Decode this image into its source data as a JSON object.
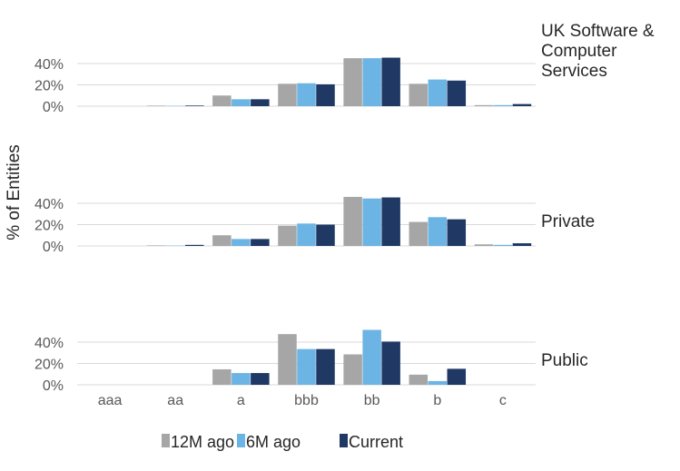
{
  "chart_data": {
    "type": "bar",
    "ylabel": "% of Entities",
    "categories": [
      "aaa",
      "aa",
      "a",
      "bbb",
      "bb",
      "b",
      "c"
    ],
    "yticks": [
      "0%",
      "20%",
      "40%"
    ],
    "ylim": [
      0,
      48
    ],
    "grid": true,
    "legend_position": "bottom",
    "series": [
      {
        "name": "12M ago",
        "color": "#a6a6a6"
      },
      {
        "name": "6M ago",
        "color": "#6cb4e4"
      },
      {
        "name": "Current",
        "color": "#1f3864"
      }
    ],
    "panels": [
      {
        "label_lines": [
          "UK Software &",
          "Computer",
          "Services"
        ],
        "values": [
          [
            0,
            0.5,
            10,
            21,
            45,
            21,
            1
          ],
          [
            0,
            0.3,
            6.5,
            21.5,
            45,
            25,
            1
          ],
          [
            0,
            0.6,
            6.5,
            20.5,
            45.5,
            24,
            2
          ]
        ]
      },
      {
        "label_lines": [
          "Private"
        ],
        "values": [
          [
            0,
            0.5,
            10,
            19,
            46,
            22.5,
            1.5
          ],
          [
            0,
            0.3,
            6.5,
            21,
            44.5,
            27,
            1
          ],
          [
            0,
            1,
            6.5,
            20,
            45.5,
            25,
            2.5
          ]
        ]
      },
      {
        "label_lines": [
          "Public"
        ],
        "values": [
          [
            0,
            0,
            14.5,
            47.5,
            28.5,
            9.5,
            0
          ],
          [
            0,
            0,
            11,
            33.5,
            51.5,
            3.5,
            0
          ],
          [
            0,
            0,
            11,
            33.5,
            40.5,
            15,
            0
          ]
        ]
      }
    ]
  }
}
